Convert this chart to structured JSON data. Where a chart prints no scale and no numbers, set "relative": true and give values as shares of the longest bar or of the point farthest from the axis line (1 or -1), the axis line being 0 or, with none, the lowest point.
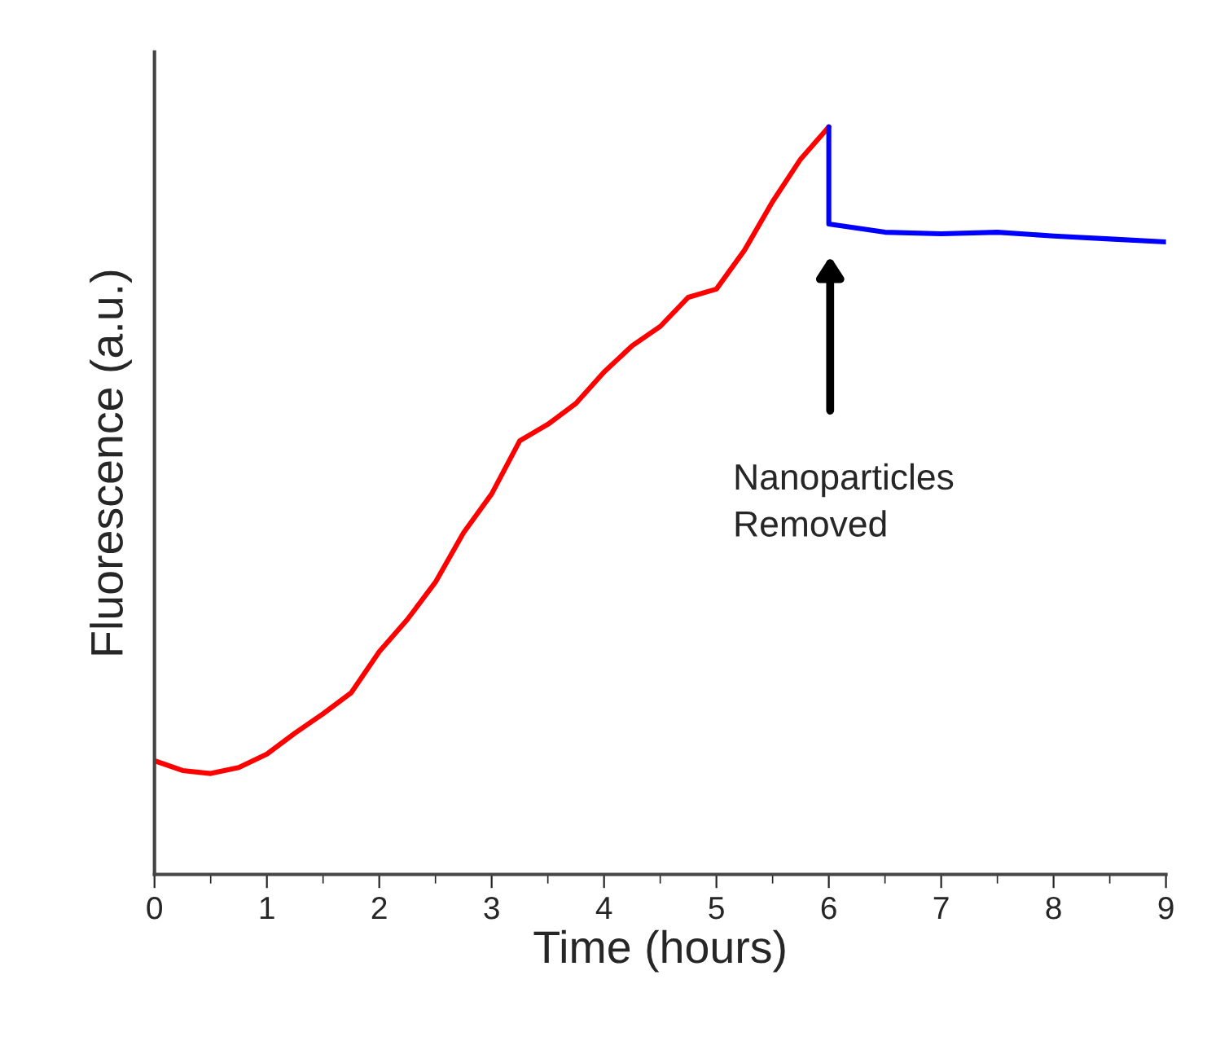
{
  "chart_data": {
    "type": "line",
    "relative": true,
    "xlabel": "Time (hours)",
    "ylabel": "Fluorescence (a.u.)",
    "xlim": [
      0,
      9
    ],
    "xticks": [
      0,
      1,
      2,
      3,
      4,
      5,
      6,
      7,
      8,
      9
    ],
    "grid": false,
    "legend": false,
    "marker": "none",
    "line_style": "solid",
    "series": [
      {
        "color": "#ff0000",
        "x": [
          0,
          0.25,
          0.5,
          0.75,
          1.0,
          1.25,
          1.5,
          1.75,
          2.0,
          2.25,
          2.5,
          2.75,
          3.0,
          3.25,
          3.5,
          3.75,
          4.0,
          4.25,
          4.5,
          4.75,
          5.0,
          5.25,
          5.5,
          5.75,
          6.0
        ],
        "values": [
          0.152,
          0.139,
          0.135,
          0.143,
          0.161,
          0.189,
          0.215,
          0.243,
          0.298,
          0.341,
          0.391,
          0.457,
          0.509,
          0.58,
          0.602,
          0.63,
          0.672,
          0.707,
          0.733,
          0.772,
          0.783,
          0.835,
          0.9,
          0.957,
          1.0
        ]
      },
      {
        "color": "#0000ff",
        "x": [
          6.0,
          6.0,
          6.5,
          7.0,
          7.5,
          8.0,
          8.5,
          9.0
        ],
        "values": [
          1.0,
          0.87,
          0.859,
          0.857,
          0.859,
          0.854,
          0.85,
          0.846
        ]
      }
    ],
    "annotations": [
      "Nanoparticles\nRemoved"
    ]
  }
}
